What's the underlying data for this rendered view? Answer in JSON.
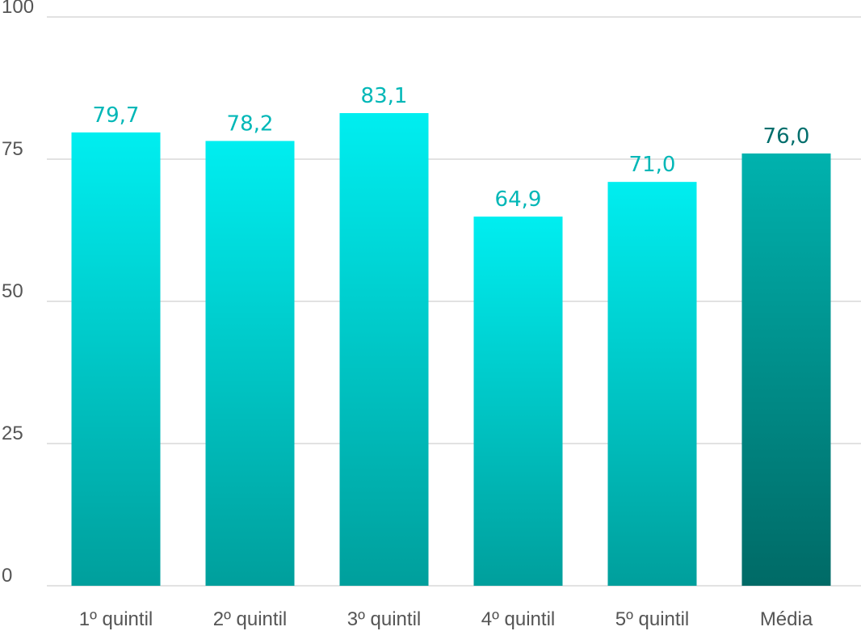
{
  "chart_data": {
    "type": "bar",
    "categories": [
      "1º quintil",
      "2º quintil",
      "3º quintil",
      "4º quintil",
      "5º quintil",
      "Média"
    ],
    "values": [
      79.7,
      78.2,
      83.1,
      64.9,
      71.0,
      76.0
    ],
    "value_labels": [
      "79,7",
      "78,2",
      "83,1",
      "64,9",
      "71,0",
      "76,0"
    ],
    "ylim": [
      0,
      100
    ],
    "yticks": [
      0,
      25,
      50,
      75,
      100
    ],
    "ytick_labels": [
      "0",
      "25",
      "50",
      "75",
      "100"
    ],
    "grid": true,
    "title": "",
    "xlabel": "",
    "ylabel": "",
    "colors": {
      "bar_top": "#00eef0",
      "bar_bottom": "#009f9c",
      "highlight_top": "#00b2ae",
      "highlight_bottom": "#006a66",
      "label": "#00b7b7",
      "highlight_label": "#006e6c"
    },
    "highlight_index": 5
  }
}
